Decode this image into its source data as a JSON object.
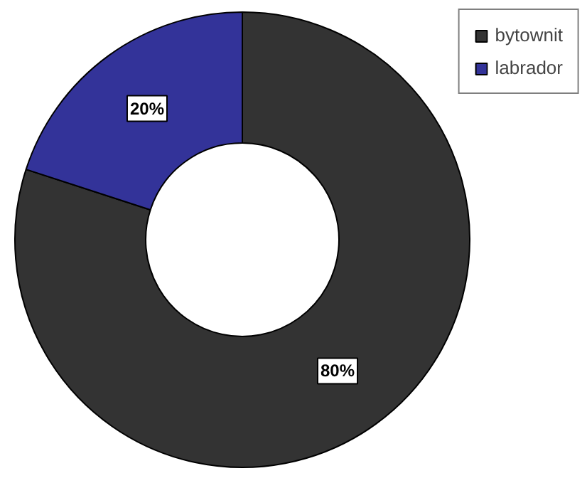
{
  "chart_data": {
    "type": "donut",
    "categories": [
      "bytownit",
      "labrador"
    ],
    "values": [
      80,
      20
    ],
    "colors": [
      "#333333",
      "#333399"
    ],
    "value_labels": [
      "80%",
      "20%"
    ],
    "legend": "top right"
  }
}
